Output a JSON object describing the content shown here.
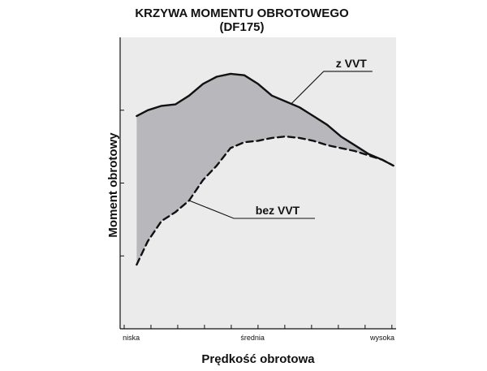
{
  "chart_data": {
    "type": "line",
    "title_line1": "KRZYWA MOMENTU OBROTOWEGO",
    "title_line2": "(DF175)",
    "xlabel": "Prędkość obrotowa",
    "ylabel": "Moment obrotowy",
    "x_tick_labels": [
      "niska",
      "średnia",
      "wysoka"
    ],
    "xlim": [
      0,
      100
    ],
    "ylim": [
      0,
      100
    ],
    "grid": false,
    "legend": "none",
    "fill_between_series": true,
    "colors": {
      "fill": "#b8b8bc",
      "plot_bg": "#ebebeb",
      "line": "#111111"
    },
    "series": [
      {
        "name": "z VVT",
        "style": "solid",
        "x": [
          6,
          10,
          15,
          20,
          25,
          30,
          35,
          40,
          45,
          50,
          55,
          60,
          65,
          70,
          75,
          80,
          85,
          90,
          95,
          99
        ],
        "y": [
          73,
          75,
          76.5,
          77,
          80,
          84,
          86.5,
          87.5,
          87,
          84,
          80,
          78,
          76,
          73,
          70,
          66,
          63,
          60,
          58,
          56
        ]
      },
      {
        "name": "bez VVT",
        "style": "dashed",
        "x": [
          6,
          10,
          15,
          20,
          25,
          30,
          35,
          40,
          45,
          50,
          55,
          60,
          65,
          70,
          75,
          80,
          85,
          90,
          95,
          99
        ],
        "y": [
          22,
          30,
          37,
          40,
          44,
          51,
          56,
          62,
          64,
          64.5,
          65.5,
          66,
          65.5,
          64.5,
          63,
          62,
          61,
          59.5,
          58,
          56
        ]
      }
    ],
    "annotations": [
      {
        "text": "z VVT",
        "series": "z VVT",
        "at_x": 62
      },
      {
        "text": "bez VVT",
        "series": "bez VVT",
        "at_x": 25
      }
    ]
  }
}
